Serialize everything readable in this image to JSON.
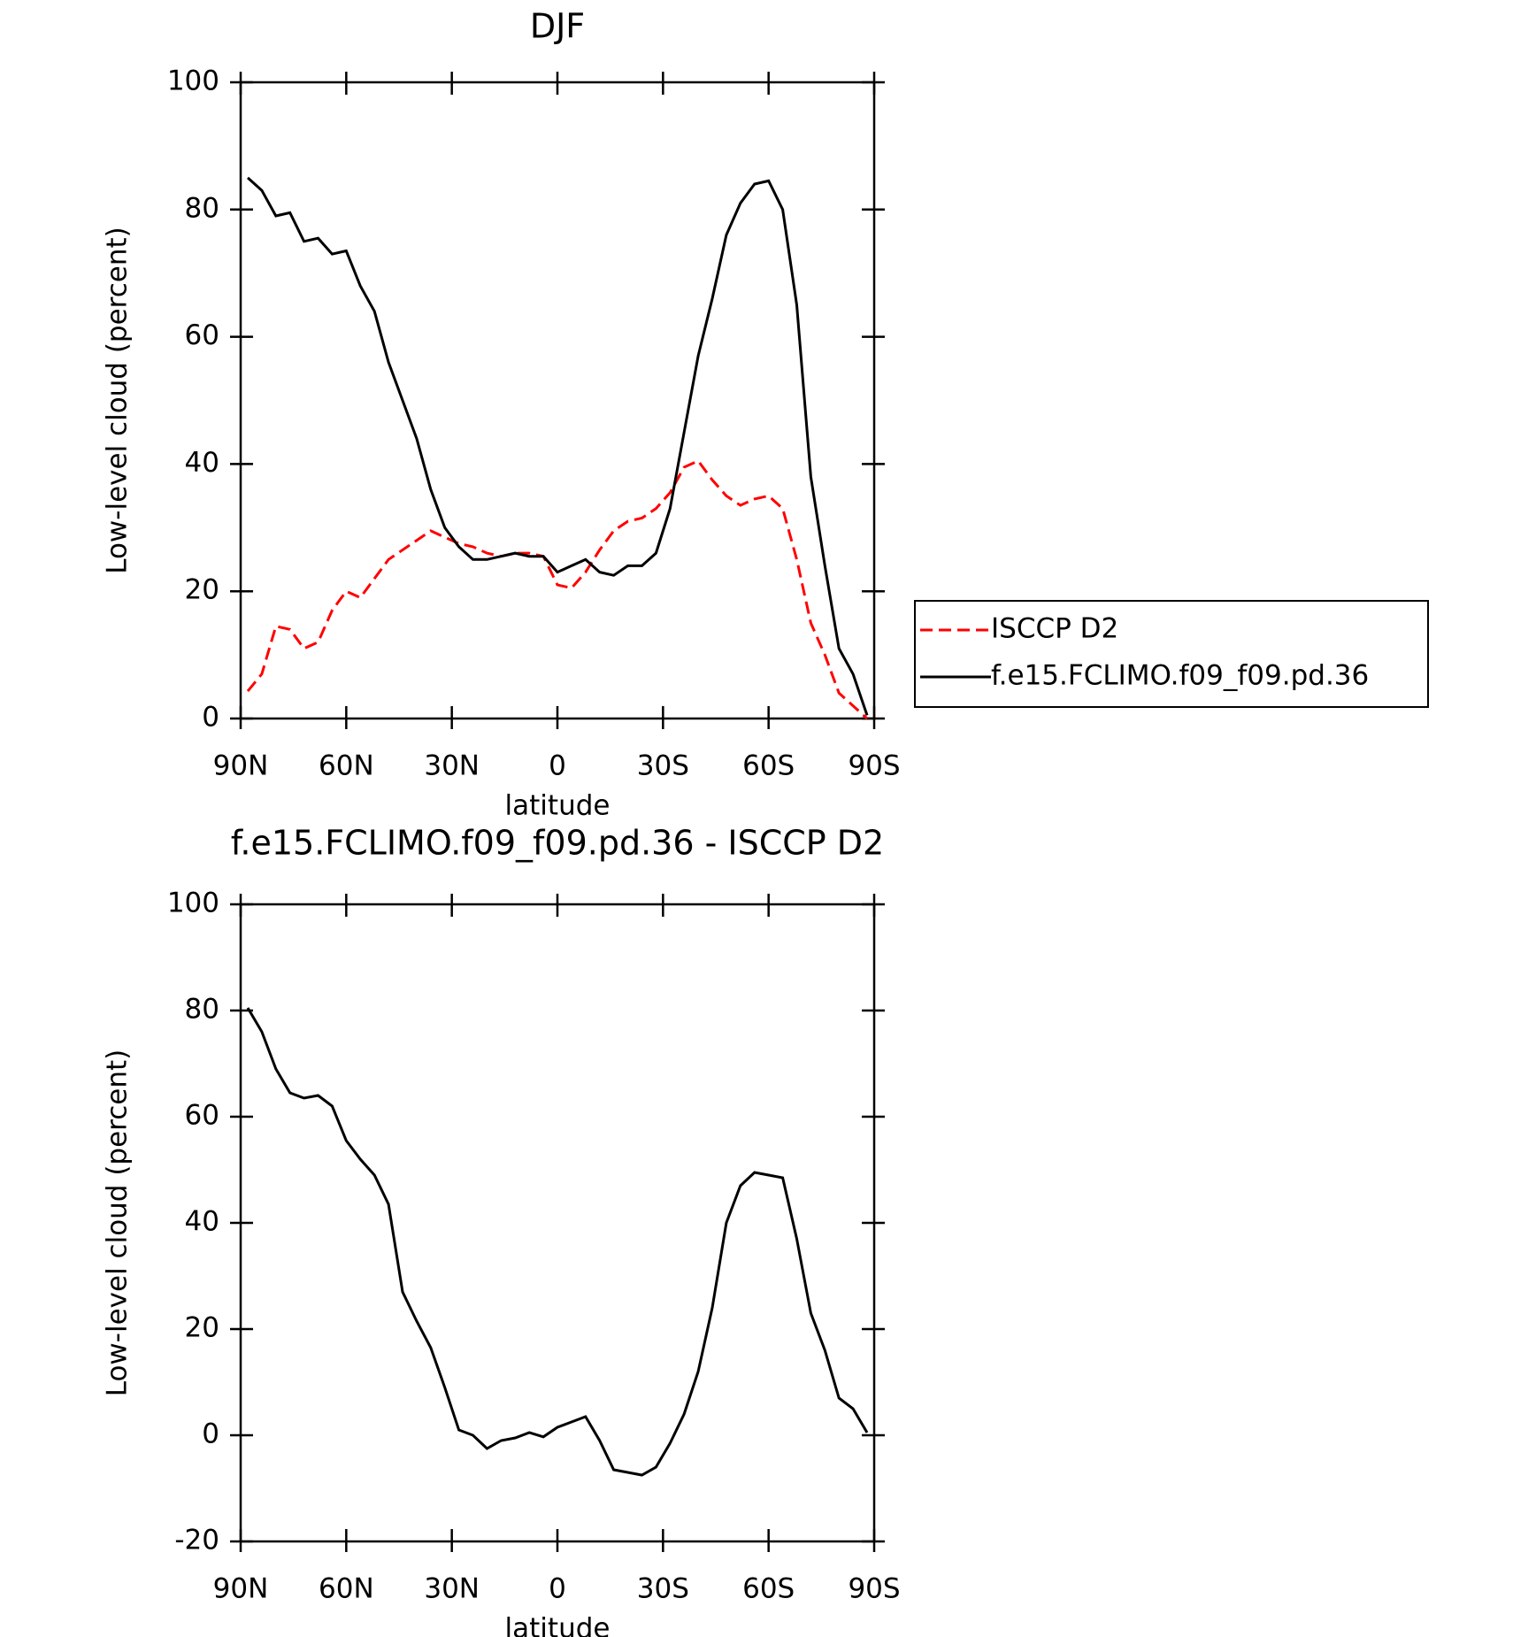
{
  "chart_data": [
    {
      "type": "line",
      "title": "DJF",
      "x_label": "latitude",
      "y_label": "Low-level cloud (percent)",
      "x": [
        88,
        84,
        80,
        76,
        72,
        68,
        64,
        60,
        56,
        52,
        48,
        44,
        40,
        36,
        32,
        28,
        24,
        20,
        16,
        12,
        8,
        4,
        0,
        -4,
        -8,
        -12,
        -16,
        -20,
        -24,
        -28,
        -32,
        -36,
        -40,
        -44,
        -48,
        -52,
        -56,
        -60,
        -64,
        -68,
        -72,
        -76,
        -80,
        -84,
        -88
      ],
      "series": [
        {
          "name": "ISCCP D2",
          "color": "#ff0000",
          "line_style": "dashed",
          "values": [
            4.3,
            7,
            14.5,
            14,
            11,
            12,
            17,
            20,
            19,
            22,
            25,
            26.5,
            28,
            29.5,
            28.5,
            27.5,
            27,
            26,
            25.5,
            26,
            26,
            25.5,
            21,
            20.5,
            23,
            26.5,
            29.5,
            31,
            31.5,
            33,
            35.5,
            39.5,
            40.5,
            37.5,
            35,
            33.5,
            34.5,
            35,
            33,
            25,
            15,
            10,
            4,
            2,
            0
          ]
        },
        {
          "name": "f.e15.FCLIMO.f09_f09.pd.36",
          "color": "#000000",
          "line_style": "solid",
          "values": [
            85,
            83,
            79,
            79.5,
            75,
            75.5,
            73,
            73.5,
            68,
            64,
            56,
            50,
            44,
            36,
            30,
            27,
            25,
            25,
            25.5,
            26,
            25.5,
            25.5,
            23,
            24,
            25,
            23,
            22.5,
            24,
            24,
            26,
            33,
            45,
            57,
            66,
            76,
            81,
            84,
            84.5,
            80,
            65,
            38,
            24,
            11,
            7,
            0.5
          ]
        }
      ],
      "xlim": [
        90,
        -90
      ],
      "xticks": [
        {
          "value": 90,
          "label": "90N"
        },
        {
          "value": 60,
          "label": "60N"
        },
        {
          "value": 30,
          "label": "30N"
        },
        0,
        {
          "value": -30,
          "label": "30S"
        },
        {
          "value": -60,
          "label": "60S"
        },
        {
          "value": -90,
          "label": "90S"
        }
      ],
      "ylim": [
        0,
        100
      ],
      "yticks": [
        0,
        20,
        40,
        60,
        80,
        100
      ],
      "legend": "outside-right"
    },
    {
      "type": "line",
      "title": "f.e15.FCLIMO.f09_f09.pd.36 - ISCCP D2",
      "x_label": "latitude",
      "y_label": "Low-level cloud (percent)",
      "x": [
        88,
        84,
        80,
        76,
        72,
        68,
        64,
        60,
        56,
        52,
        48,
        44,
        40,
        36,
        32,
        28,
        24,
        20,
        16,
        12,
        8,
        4,
        0,
        -4,
        -8,
        -12,
        -16,
        -20,
        -24,
        -28,
        -32,
        -36,
        -40,
        -44,
        -48,
        -52,
        -56,
        -60,
        -64,
        -68,
        -72,
        -76,
        -80,
        -84,
        -88
      ],
      "series": [
        {
          "color": "#000000",
          "line_style": "solid",
          "values": [
            80.5,
            76,
            69,
            64.5,
            63.5,
            64,
            62,
            55.5,
            52,
            49,
            43.5,
            27,
            21.5,
            16.5,
            9,
            1,
            0,
            -2.5,
            -1,
            -0.5,
            0.5,
            -0.3,
            1.5,
            2.5,
            3.5,
            -1,
            -6.5,
            -7,
            -7.5,
            -6,
            -1.5,
            4,
            12,
            24,
            40,
            47,
            49.5,
            49,
            48.5,
            37,
            23,
            16,
            7,
            5,
            0.5
          ]
        }
      ],
      "xlim": [
        90,
        -90
      ],
      "xticks": [
        {
          "value": 90,
          "label": "90N"
        },
        {
          "value": 60,
          "label": "60N"
        },
        {
          "value": 30,
          "label": "30N"
        },
        0,
        {
          "value": -30,
          "label": "30S"
        },
        {
          "value": -60,
          "label": "60S"
        },
        {
          "value": -90,
          "label": "90S"
        }
      ],
      "ylim": [
        -20,
        100
      ],
      "yticks": [
        -20,
        0,
        20,
        40,
        60,
        80,
        100
      ]
    }
  ]
}
